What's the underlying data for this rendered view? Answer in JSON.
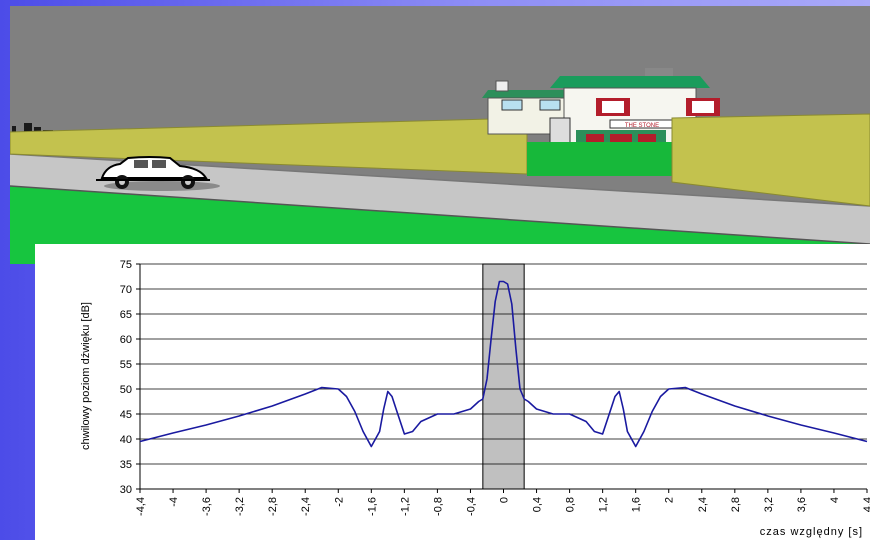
{
  "scene": {
    "sign_text": "THE STONE",
    "colors": {
      "sky": "#808080",
      "wall": "#c3c24e",
      "road": "#c6c6c6",
      "grass": "#17c53f",
      "house_roof": "#1a9c5c",
      "house_accent": "#b31d2b"
    }
  },
  "chart_data": {
    "type": "line",
    "ylabel": "chwilowy poziom dźwięku [dB]",
    "xlabel": "czas względny [s]",
    "xlim": [
      -4.4,
      4.4
    ],
    "ylim": [
      30,
      75
    ],
    "y_ticks": [
      "30",
      "35",
      "40",
      "45",
      "50",
      "55",
      "60",
      "65",
      "70",
      "75"
    ],
    "x_ticks": [
      "-4,4",
      "-4",
      "-3,6",
      "-3,2",
      "-2,8",
      "-2,4",
      "-2",
      "-1,6",
      "-1,2",
      "-0,8",
      "-0,4",
      "0",
      "0,4",
      "0,8",
      "1,2",
      "1,6",
      "2",
      "2,4",
      "2,8",
      "3,2",
      "3,6",
      "4",
      "4,4"
    ],
    "grid": "horizontal",
    "highlight_band": [
      -0.25,
      0.25
    ],
    "line_color": "#1a1aa0",
    "band_color": "#c0c0c0",
    "series": [
      {
        "x": [
          -4.4,
          -4.0,
          -3.6,
          -3.2,
          -2.8,
          -2.4,
          -2.2,
          -2.0,
          -1.9,
          -1.8,
          -1.7,
          -1.6,
          -1.5,
          -1.45,
          -1.4,
          -1.35,
          -1.3,
          -1.2,
          -1.1,
          -1.0,
          -0.8,
          -0.6,
          -0.4,
          -0.3,
          -0.25,
          -0.2,
          -0.15,
          -0.1,
          -0.05,
          0.0,
          0.05,
          0.1,
          0.15,
          0.2,
          0.25,
          0.3,
          0.4,
          0.6,
          0.8,
          1.0,
          1.1,
          1.2,
          1.3,
          1.35,
          1.4,
          1.45,
          1.5,
          1.6,
          1.7,
          1.8,
          1.9,
          2.0,
          2.2,
          2.4,
          2.8,
          3.2,
          3.6,
          4.0,
          4.4
        ],
        "values": [
          39.5,
          41.2,
          42.8,
          44.6,
          46.6,
          49.0,
          50.3,
          50.0,
          48.5,
          45.5,
          41.5,
          38.5,
          41.5,
          46.0,
          49.5,
          48.5,
          46.0,
          41.0,
          41.5,
          43.5,
          45.0,
          45.0,
          46.0,
          47.5,
          48.0,
          52.0,
          60.0,
          67.5,
          71.5,
          71.5,
          71.0,
          67.0,
          58.0,
          50.0,
          48.0,
          47.5,
          46.0,
          45.0,
          45.0,
          43.5,
          41.5,
          41.0,
          46.0,
          48.5,
          49.5,
          46.0,
          41.5,
          38.5,
          41.5,
          45.5,
          48.5,
          50.0,
          50.3,
          49.0,
          46.6,
          44.6,
          42.8,
          41.2,
          39.5
        ]
      }
    ]
  }
}
